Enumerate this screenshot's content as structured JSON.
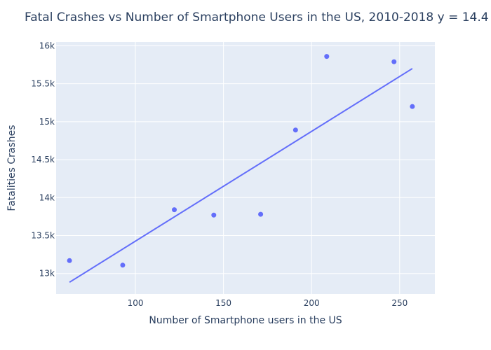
{
  "chart_data": {
    "type": "scatter",
    "title": "Fatal Crashes vs Number of Smartphone Users in the US, 2010-2018 y = 14.4",
    "xlabel": "Number of Smartphone users in the US",
    "ylabel": "Fatalities Crashes",
    "xlim": [
      55,
      270
    ],
    "ylim": [
      12730,
      16050
    ],
    "x_ticks": [
      100,
      150,
      200,
      250
    ],
    "x_tick_labels": [
      "100",
      "150",
      "200",
      "250"
    ],
    "y_ticks": [
      13000,
      13500,
      14000,
      14500,
      15000,
      15500,
      16000
    ],
    "y_tick_labels": [
      "13k",
      "13.5k",
      "14k",
      "14.5k",
      "15k",
      "15.5k",
      "16k"
    ],
    "grid": true,
    "series": [
      {
        "mode": "markers",
        "color": "#636efa",
        "points": [
          {
            "x": 62.6,
            "y": 13170
          },
          {
            "x": 92.8,
            "y": 13110
          },
          {
            "x": 122.1,
            "y": 13840
          },
          {
            "x": 144.5,
            "y": 13770
          },
          {
            "x": 171.1,
            "y": 13780
          },
          {
            "x": 190.9,
            "y": 14890
          },
          {
            "x": 208.6,
            "y": 15860
          },
          {
            "x": 246.8,
            "y": 15790
          },
          {
            "x": 257.2,
            "y": 15200
          }
        ]
      },
      {
        "mode": "lines",
        "color": "#636efa",
        "points": [
          {
            "x": 62.6,
            "y": 12885
          },
          {
            "x": 257.2,
            "y": 15700
          }
        ]
      }
    ]
  }
}
